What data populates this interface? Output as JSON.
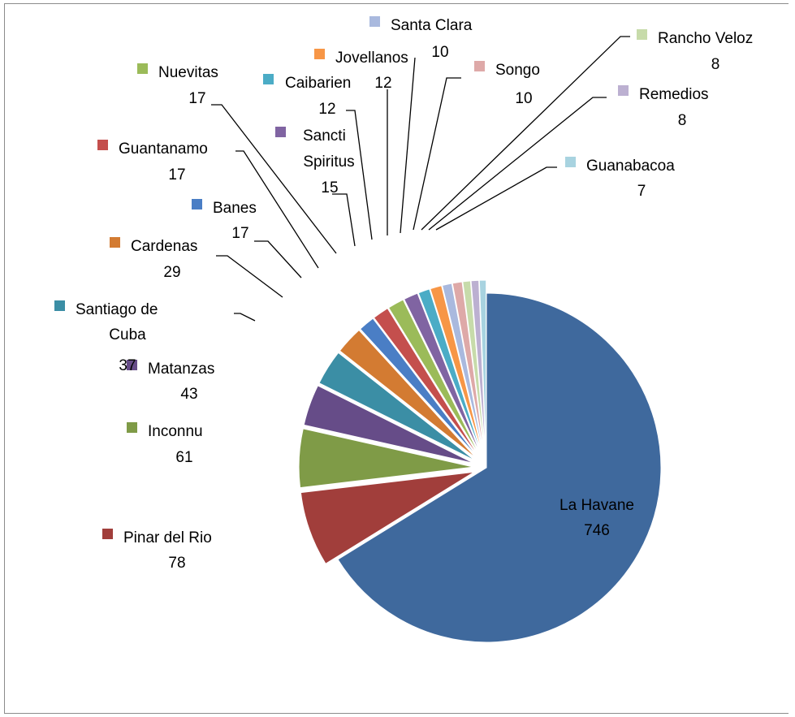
{
  "chart_data": {
    "type": "pie",
    "title": "",
    "series": [
      {
        "values": [
          746,
          78,
          61,
          43,
          37,
          29,
          17,
          17,
          17,
          15,
          12,
          12,
          10,
          10,
          8,
          8,
          7
        ],
        "categories": [
          "La Havane",
          "Pinar del Rio",
          "Inconnu",
          "Matanzas",
          "Santiago de Cuba",
          "Cardenas",
          "Banes",
          "Guantanamo",
          "Nuevitas",
          "Sancti Spiritus",
          "Caibarien",
          "Jovellanos",
          "Santa Clara",
          "Songo",
          "Rancho Veloz",
          "Remedios",
          "Guanabacoa"
        ]
      }
    ],
    "slices": [
      {
        "label": "La Havane",
        "value": 746,
        "color": "#3f699d"
      },
      {
        "label": "Pinar del Rio",
        "value": 78,
        "color": "#a13e3b"
      },
      {
        "label": "Inconnu",
        "value": 61,
        "color": "#7f9b47"
      },
      {
        "label": "Matanzas",
        "value": 43,
        "color": "#664c88"
      },
      {
        "label": "Santiago de Cuba",
        "value": 37,
        "color": "#3b8ea5"
      },
      {
        "label": "Cardenas",
        "value": 29,
        "color": "#d37b32"
      },
      {
        "label": "Banes",
        "value": 17,
        "color": "#4a7ec5"
      },
      {
        "label": "Guantanamo",
        "value": 17,
        "color": "#c44f4d"
      },
      {
        "label": "Nuevitas",
        "value": 17,
        "color": "#9bbb59"
      },
      {
        "label": "Sancti Spiritus",
        "value": 15,
        "color": "#8064a2"
      },
      {
        "label": "Caibarien",
        "value": 12,
        "color": "#4bacc6"
      },
      {
        "label": "Jovellanos",
        "value": 12,
        "color": "#f79646"
      },
      {
        "label": "Santa Clara",
        "value": 10,
        "color": "#a9b9de"
      },
      {
        "label": "Songo",
        "value": 10,
        "color": "#dea9a8"
      },
      {
        "label": "Rancho Veloz",
        "value": 8,
        "color": "#c7dbaa"
      },
      {
        "label": "Remedios",
        "value": 8,
        "color": "#bcb0d1"
      },
      {
        "label": "Guanabacoa",
        "value": 7,
        "color": "#a8d3e0"
      }
    ],
    "labels": {
      "la_havane": {
        "name": "La Havane",
        "value": "746"
      },
      "pinar": {
        "name": "Pinar del Rio",
        "value": "78"
      },
      "inconnu": {
        "name": "Inconnu",
        "value": "61"
      },
      "matanzas": {
        "name": "Matanzas",
        "value": "43"
      },
      "santiago": {
        "name_l1": "Santiago de",
        "name_l2": "Cuba",
        "value": "37"
      },
      "cardenas": {
        "name": "Cardenas",
        "value": "29"
      },
      "banes": {
        "name": "Banes",
        "value": "17"
      },
      "guantanamo": {
        "name": "Guantanamo",
        "value": "17"
      },
      "nuevitas": {
        "name": "Nuevitas",
        "value": "17"
      },
      "sancti": {
        "name_l1": "Sancti",
        "name_l2": "Spiritus",
        "value": "15"
      },
      "caibarien": {
        "name": "Caibarien",
        "value": "12"
      },
      "jovellanos": {
        "name": "Jovellanos",
        "value": "12"
      },
      "santa_clara": {
        "name": "Santa Clara",
        "value": "10"
      },
      "songo": {
        "name": "Songo",
        "value": "10"
      },
      "rancho": {
        "name": "Rancho Veloz",
        "value": "8"
      },
      "remedios": {
        "name": "Remedios",
        "value": "8"
      },
      "guanabacoa": {
        "name": "Guanabacoa",
        "value": "7"
      }
    },
    "legend": "none",
    "data_labels": "category-name-and-value with leader lines"
  }
}
